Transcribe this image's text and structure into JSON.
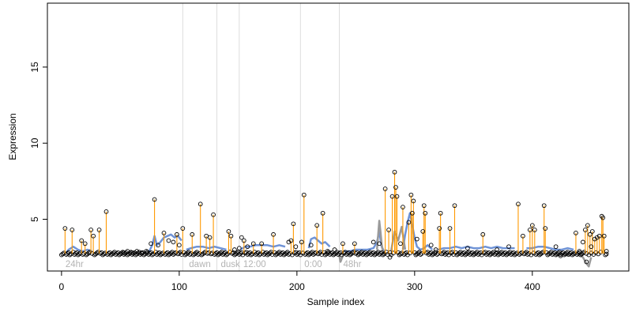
{
  "chart_data": {
    "type": "scatter",
    "xlabel": "Sample index",
    "ylabel": "Expression",
    "xlim": [
      -12,
      482
    ],
    "ylim": [
      1.6,
      19.2
    ],
    "x_ticks": [
      0,
      100,
      200,
      300,
      400
    ],
    "y_ticks": [
      5,
      10,
      15
    ],
    "baseline": 2.75,
    "grid": "vertical phase markers",
    "legend": "none",
    "colors": {
      "spike_segments": "#ff9900",
      "profile_line": "#6f93d6",
      "profile_line_alt": "#9a9a9a",
      "phase_lines": "#dddddd",
      "phase_labels": "#b4b4b4",
      "points_stroke": "#000000"
    },
    "phase_markers": [
      {
        "x": 103,
        "label": ""
      },
      {
        "x": 132,
        "label": ""
      },
      {
        "x": 151,
        "label": ""
      },
      {
        "x": 203,
        "label": ""
      },
      {
        "x": 236,
        "label": ""
      }
    ],
    "phase_labels": [
      {
        "x": 2,
        "text": "24hr"
      },
      {
        "x": 107,
        "text": "dawn"
      },
      {
        "x": 134,
        "text": "dusk"
      },
      {
        "x": 153,
        "text": "12:00"
      },
      {
        "x": 205,
        "text": "0:00"
      },
      {
        "x": 238,
        "text": "48hr"
      }
    ],
    "profile_segments": [
      {
        "x": [
          4,
          6,
          10,
          14,
          18,
          22,
          26
        ],
        "y": [
          2.8,
          3.0,
          3.2,
          3.0,
          2.9,
          3.0,
          2.9
        ]
      },
      {
        "x": [
          74,
          77,
          79,
          81,
          84,
          87,
          90,
          93,
          96,
          99,
          102
        ],
        "y": [
          2.8,
          3.3,
          3.9,
          3.3,
          3.5,
          3.8,
          3.9,
          4.0,
          3.8,
          3.9,
          3.6
        ]
      },
      {
        "x": [
          106,
          110,
          115,
          120,
          125,
          130,
          135,
          140
        ],
        "y": [
          3.0,
          3.1,
          3.2,
          3.2,
          3.1,
          3.2,
          3.1,
          3.0
        ]
      },
      {
        "x": [
          152,
          156,
          160,
          165,
          170,
          175,
          180,
          185,
          190
        ],
        "y": [
          3.0,
          3.2,
          3.2,
          3.3,
          3.3,
          3.3,
          3.2,
          3.3,
          3.2
        ]
      },
      {
        "x": [
          210,
          212,
          215,
          218,
          221,
          224,
          228
        ],
        "y": [
          3.1,
          3.7,
          3.8,
          3.6,
          3.4,
          3.5,
          3.2
        ]
      },
      {
        "x": [
          240,
          245,
          250,
          255,
          260,
          265,
          268,
          270,
          272,
          274
        ],
        "y": [
          2.9,
          2.9,
          3.0,
          3.0,
          3.0,
          3.1,
          3.5,
          4.2,
          3.2,
          2.9
        ]
      },
      {
        "x": [
          290,
          292,
          294,
          296,
          298,
          300,
          302,
          305,
          308,
          311,
          315
        ],
        "y": [
          3.0,
          4.0,
          4.8,
          5.4,
          4.6,
          3.8,
          3.2,
          3.0,
          3.1,
          3.3,
          3.0
        ]
      },
      {
        "x": [
          320,
          325,
          330,
          335,
          340,
          345,
          350,
          355,
          360,
          365,
          370,
          375,
          380,
          385
        ],
        "y": [
          3.0,
          3.1,
          3.1,
          3.2,
          3.1,
          3.2,
          3.1,
          3.1,
          3.2,
          3.1,
          3.2,
          3.1,
          3.1,
          3.1
        ]
      },
      {
        "x": [
          395,
          400,
          405,
          410,
          415,
          420,
          425,
          430,
          435
        ],
        "y": [
          3.1,
          3.1,
          3.2,
          3.2,
          3.1,
          3.0,
          3.0,
          3.1,
          3.0
        ]
      }
    ],
    "profile_segments_alt": [
      {
        "x": [
          236,
          237,
          238,
          239,
          240
        ],
        "y": [
          2.6,
          2.2,
          2.4,
          2.6,
          2.7
        ]
      },
      {
        "x": [
          268,
          270,
          271,
          272,
          273,
          274,
          276
        ],
        "y": [
          3.0,
          4.9,
          4.2,
          3.4,
          2.9,
          2.7,
          2.8
        ]
      },
      {
        "x": [
          280,
          283,
          286,
          289,
          292
        ],
        "y": [
          2.9,
          4.2,
          3.6,
          4.5,
          3.0
        ]
      },
      {
        "x": [
          420,
          425,
          430,
          435,
          440,
          443,
          446,
          448,
          450
        ],
        "y": [
          2.6,
          2.7,
          2.6,
          2.8,
          2.7,
          2.5,
          2.1,
          1.9,
          2.5
        ]
      }
    ],
    "spikes": [
      {
        "x": 3,
        "y": 4.4
      },
      {
        "x": 9,
        "y": 4.3
      },
      {
        "x": 17,
        "y": 3.6
      },
      {
        "x": 20,
        "y": 3.4
      },
      {
        "x": 25,
        "y": 4.3
      },
      {
        "x": 27,
        "y": 3.9
      },
      {
        "x": 32,
        "y": 4.3
      },
      {
        "x": 38,
        "y": 5.5
      },
      {
        "x": 79,
        "y": 6.3
      },
      {
        "x": 87,
        "y": 4.1
      },
      {
        "x": 98,
        "y": 4.0
      },
      {
        "x": 103,
        "y": 4.4
      },
      {
        "x": 111,
        "y": 4.0
      },
      {
        "x": 118,
        "y": 6.0
      },
      {
        "x": 123,
        "y": 3.9
      },
      {
        "x": 126,
        "y": 3.8
      },
      {
        "x": 129,
        "y": 5.3
      },
      {
        "x": 142,
        "y": 4.2
      },
      {
        "x": 144,
        "y": 3.9
      },
      {
        "x": 155,
        "y": 3.6
      },
      {
        "x": 163,
        "y": 3.4
      },
      {
        "x": 170,
        "y": 3.4
      },
      {
        "x": 180,
        "y": 4.0
      },
      {
        "x": 195,
        "y": 3.6
      },
      {
        "x": 197,
        "y": 4.7
      },
      {
        "x": 204,
        "y": 3.5
      },
      {
        "x": 206,
        "y": 6.6
      },
      {
        "x": 217,
        "y": 4.6
      },
      {
        "x": 222,
        "y": 5.4
      },
      {
        "x": 239,
        "y": 3.4
      },
      {
        "x": 249,
        "y": 3.4
      },
      {
        "x": 275,
        "y": 7.0
      },
      {
        "x": 278,
        "y": 4.3
      },
      {
        "x": 281,
        "y": 6.5
      },
      {
        "x": 283,
        "y": 8.1
      },
      {
        "x": 284,
        "y": 7.1
      },
      {
        "x": 285,
        "y": 6.5
      },
      {
        "x": 290,
        "y": 5.8
      },
      {
        "x": 295,
        "y": 4.8
      },
      {
        "x": 297,
        "y": 6.6
      },
      {
        "x": 298,
        "y": 5.4
      },
      {
        "x": 299,
        "y": 6.2
      },
      {
        "x": 307,
        "y": 4.2
      },
      {
        "x": 308,
        "y": 5.9
      },
      {
        "x": 309,
        "y": 5.4
      },
      {
        "x": 321,
        "y": 4.4
      },
      {
        "x": 322,
        "y": 5.4
      },
      {
        "x": 330,
        "y": 4.4
      },
      {
        "x": 334,
        "y": 5.9
      },
      {
        "x": 358,
        "y": 4.0
      },
      {
        "x": 388,
        "y": 6.0
      },
      {
        "x": 392,
        "y": 3.9
      },
      {
        "x": 398,
        "y": 4.3
      },
      {
        "x": 400,
        "y": 4.6
      },
      {
        "x": 402,
        "y": 4.3
      },
      {
        "x": 410,
        "y": 5.9
      },
      {
        "x": 411,
        "y": 4.4
      },
      {
        "x": 437,
        "y": 4.1
      },
      {
        "x": 445,
        "y": 4.3
      },
      {
        "x": 447,
        "y": 4.6
      },
      {
        "x": 449,
        "y": 4.0
      },
      {
        "x": 451,
        "y": 4.2
      },
      {
        "x": 453,
        "y": 3.7
      },
      {
        "x": 455,
        "y": 3.8
      },
      {
        "x": 457,
        "y": 3.9
      },
      {
        "x": 459,
        "y": 5.2
      },
      {
        "x": 460,
        "y": 5.1
      },
      {
        "x": 461,
        "y": 3.9
      }
    ],
    "extra_points": [
      {
        "x": 53,
        "y": 2.8
      },
      {
        "x": 56,
        "y": 2.9
      },
      {
        "x": 60,
        "y": 2.8
      },
      {
        "x": 64,
        "y": 2.9
      },
      {
        "x": 68,
        "y": 2.8
      },
      {
        "x": 72,
        "y": 2.9
      },
      {
        "x": 76,
        "y": 3.4
      },
      {
        "x": 82,
        "y": 3.3
      },
      {
        "x": 91,
        "y": 3.6
      },
      {
        "x": 95,
        "y": 3.5
      },
      {
        "x": 100,
        "y": 3.3
      },
      {
        "x": 147,
        "y": 3.0
      },
      {
        "x": 151,
        "y": 3.1
      },
      {
        "x": 153,
        "y": 3.8
      },
      {
        "x": 158,
        "y": 3.2
      },
      {
        "x": 193,
        "y": 3.5
      },
      {
        "x": 199,
        "y": 3.2
      },
      {
        "x": 212,
        "y": 3.3
      },
      {
        "x": 226,
        "y": 2.9
      },
      {
        "x": 232,
        "y": 3.0
      },
      {
        "x": 265,
        "y": 3.5
      },
      {
        "x": 270,
        "y": 3.4
      },
      {
        "x": 279,
        "y": 2.5
      },
      {
        "x": 288,
        "y": 3.4
      },
      {
        "x": 302,
        "y": 3.7
      },
      {
        "x": 314,
        "y": 3.3
      },
      {
        "x": 318,
        "y": 3.0
      },
      {
        "x": 345,
        "y": 3.1
      },
      {
        "x": 370,
        "y": 3.0
      },
      {
        "x": 380,
        "y": 3.2
      },
      {
        "x": 420,
        "y": 3.2
      },
      {
        "x": 424,
        "y": 2.6
      },
      {
        "x": 440,
        "y": 2.9
      },
      {
        "x": 443,
        "y": 3.5
      },
      {
        "x": 446,
        "y": 2.2
      },
      {
        "x": 450,
        "y": 3.2
      },
      {
        "x": 463,
        "y": 2.9
      }
    ]
  }
}
